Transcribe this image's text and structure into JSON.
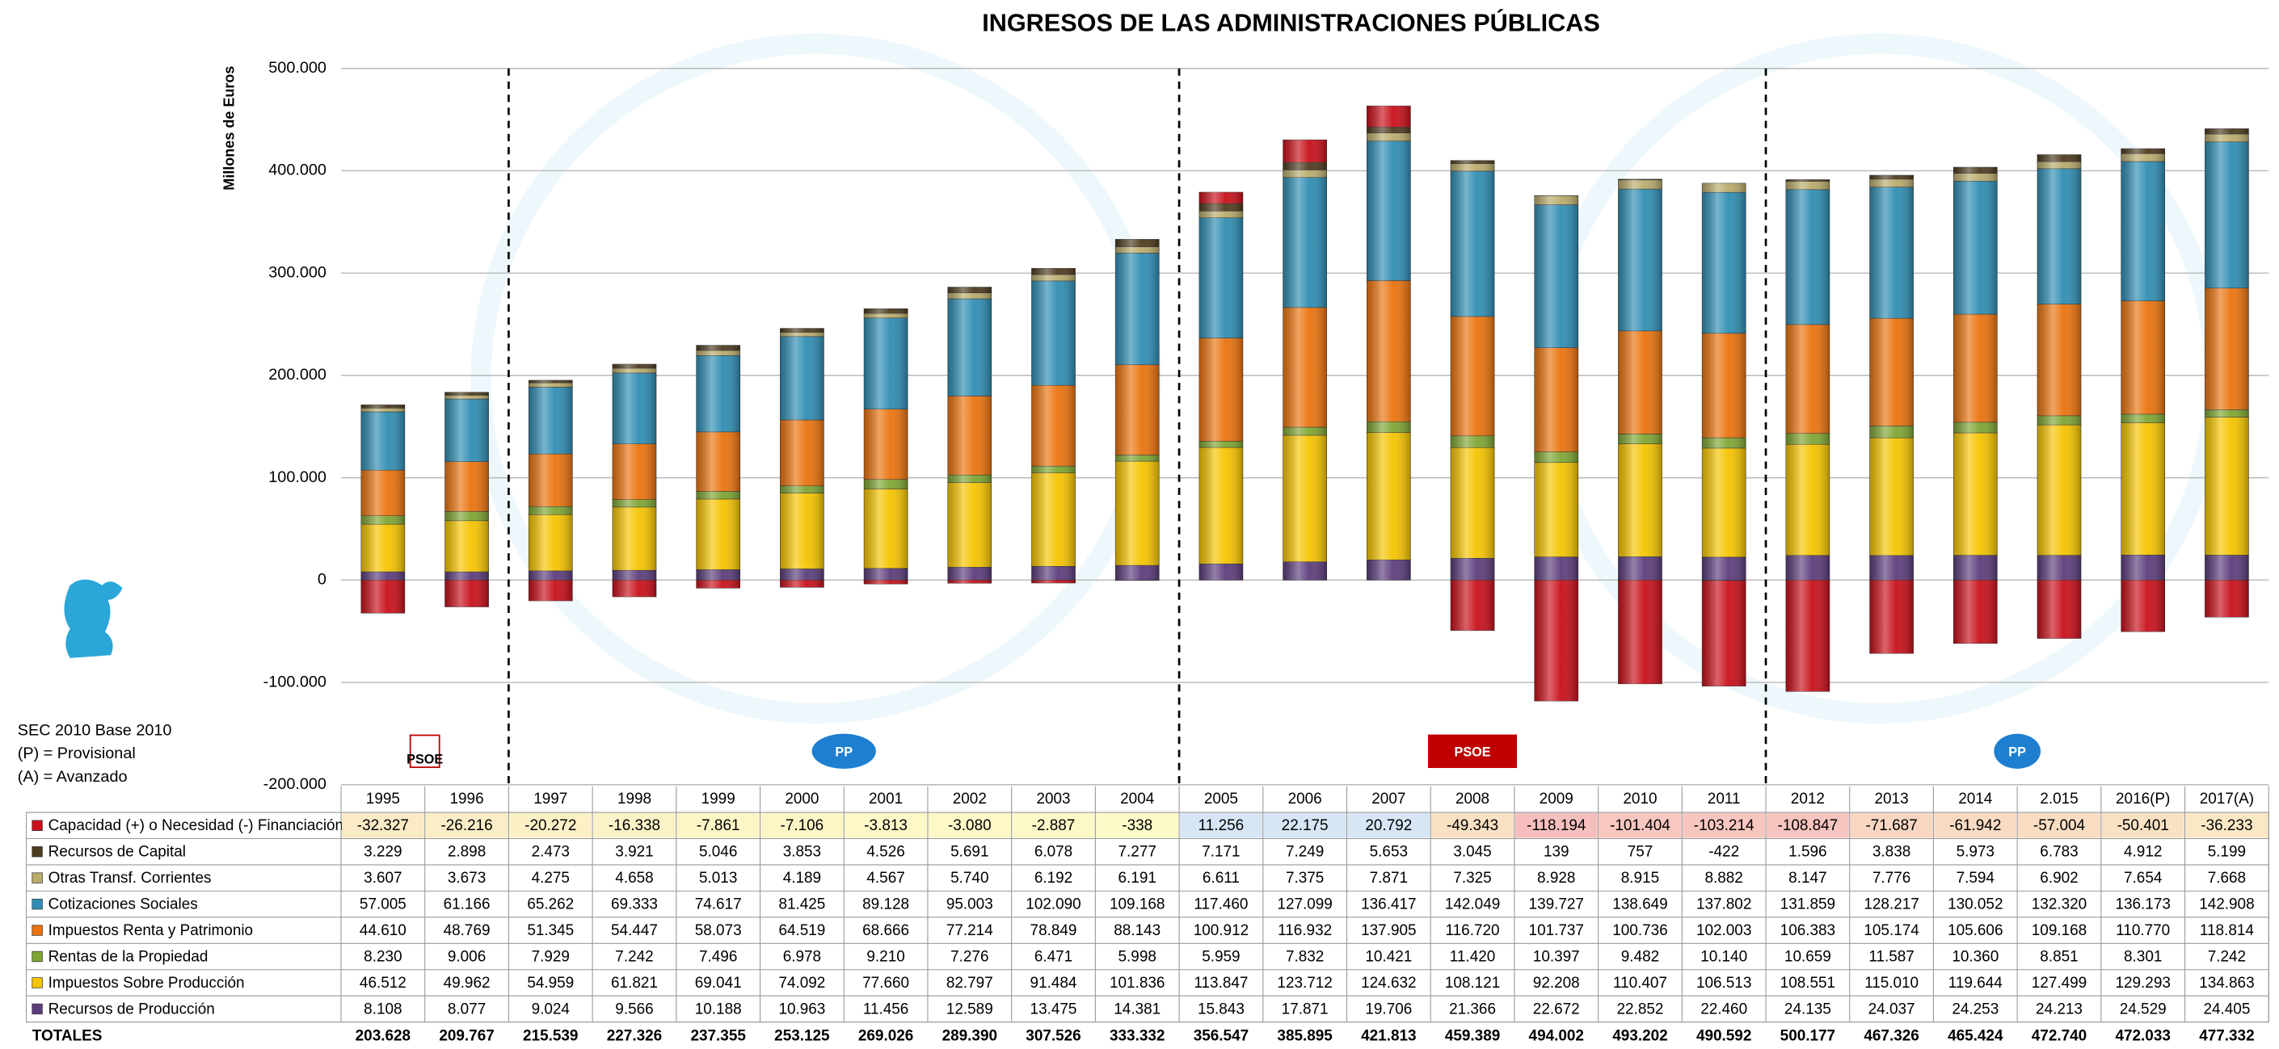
{
  "chart_data": {
    "type": "stacked_bar",
    "title": "INGRESOS DE LAS ADMINISTRACIONES PÚBLICAS",
    "y_label": "Millones de Euros",
    "notes": [
      "SEC 2010 Base 2010",
      "(P) = Provisional",
      "(A) = Avanzado"
    ],
    "periods": [
      {
        "label": "PSOE",
        "color": "#c00000"
      },
      {
        "label": "PP",
        "color": "#1e7fd0"
      },
      {
        "label": "PSOE",
        "color": "#c00000"
      },
      {
        "label": "PP",
        "color": "#1e7fd0"
      }
    ],
    "categories": [
      "1995",
      "1996",
      "1997",
      "1998",
      "1999",
      "2000",
      "2001",
      "2002",
      "2003",
      "2004",
      "2005",
      "2006",
      "2007",
      "2008",
      "2009",
      "2010",
      "2011",
      "2012",
      "2013",
      "2014",
      "2.015",
      "2016(P)",
      "2017(A)"
    ],
    "ylim": [
      -200000,
      500000
    ],
    "yticks": [
      {
        "value": -200000,
        "label": "-200.000"
      },
      {
        "value": -100000,
        "label": "-100.000"
      },
      0,
      {
        "value": 100000,
        "label": "100.000"
      },
      {
        "value": 200000,
        "label": "200.000"
      },
      {
        "value": 300000,
        "label": "300.000"
      },
      {
        "value": 400000,
        "label": "400.000"
      },
      {
        "value": 500000,
        "label": "500.000"
      }
    ],
    "grid": true,
    "series": [
      {
        "name": "Capacidad (+) o Necesidad (-) Financiación",
        "color": "#c8101a",
        "values": [
          -32327,
          -26216,
          -20272,
          -16338,
          -7861,
          -7106,
          -3813,
          -3080,
          -2887,
          -338,
          11256,
          22175,
          20792,
          -49343,
          -118194,
          -101404,
          -103214,
          -108847,
          -71687,
          -61942,
          -57004,
          -50401,
          -36233
        ],
        "value_labels": [
          "-32.327",
          "-26.216",
          "-20.272",
          "-16.338",
          "-7.861",
          "-7.106",
          "-3.813",
          "-3.080",
          "-2.887",
          "-338",
          "11.256",
          "22.175",
          "20.792",
          "-49.343",
          "-118.194",
          "-101.404",
          "-103.214",
          "-108.847",
          "-71.687",
          "-61.942",
          "-57.004",
          "-50.401",
          "-36.233"
        ]
      },
      {
        "name": "Recursos de Capital",
        "color": "#4d3b1f",
        "values": [
          3229,
          2898,
          2473,
          3921,
          5046,
          3853,
          4526,
          5691,
          6078,
          7277,
          7171,
          7249,
          5653,
          3045,
          139,
          757,
          -422,
          1596,
          3838,
          5973,
          6783,
          4912,
          5199
        ],
        "value_labels": [
          "3.229",
          "2.898",
          "2.473",
          "3.921",
          "5.046",
          "3.853",
          "4.526",
          "5.691",
          "6.078",
          "7.277",
          "7.171",
          "7.249",
          "5.653",
          "3.045",
          "139",
          "757",
          "-422",
          "1.596",
          "3.838",
          "5.973",
          "6.783",
          "4.912",
          "5.199"
        ]
      },
      {
        "name": "Otras Transf. Corrientes",
        "color": "#b9ab6c",
        "values": [
          3607,
          3673,
          4275,
          4658,
          5013,
          4189,
          4567,
          5740,
          6192,
          6191,
          6611,
          7375,
          7871,
          7325,
          8928,
          8915,
          8882,
          8147,
          7776,
          7594,
          6902,
          7654,
          7668
        ],
        "value_labels": [
          "3.607",
          "3.673",
          "4.275",
          "4.658",
          "5.013",
          "4.189",
          "4.567",
          "5.740",
          "6.192",
          "6.191",
          "6.611",
          "7.375",
          "7.871",
          "7.325",
          "8.928",
          "8.915",
          "8.882",
          "8.147",
          "7.776",
          "7.594",
          "6.902",
          "7.654",
          "7.668"
        ]
      },
      {
        "name": "Cotizaciones Sociales",
        "color": "#2f8db3",
        "values": [
          57005,
          61166,
          65262,
          69333,
          74617,
          81425,
          89128,
          95003,
          102090,
          109168,
          117460,
          127099,
          136417,
          142049,
          139727,
          138649,
          137802,
          131859,
          128217,
          130052,
          132320,
          136173,
          142908
        ],
        "value_labels": [
          "57.005",
          "61.166",
          "65.262",
          "69.333",
          "74.617",
          "81.425",
          "89.128",
          "95.003",
          "102.090",
          "109.168",
          "117.460",
          "127.099",
          "136.417",
          "142.049",
          "139.727",
          "138.649",
          "137.802",
          "131.859",
          "128.217",
          "130.052",
          "132.320",
          "136.173",
          "142.908"
        ]
      },
      {
        "name": "Impuestos Renta y Patrimonio",
        "color": "#ea730e",
        "values": [
          44610,
          48769,
          51345,
          54447,
          58073,
          64519,
          68666,
          77214,
          78849,
          88143,
          100912,
          116932,
          137905,
          116720,
          101737,
          100736,
          102003,
          106383,
          105174,
          105606,
          109168,
          110770,
          118814
        ],
        "value_labels": [
          "44.610",
          "48.769",
          "51.345",
          "54.447",
          "58.073",
          "64.519",
          "68.666",
          "77.214",
          "78.849",
          "88.143",
          "100.912",
          "116.932",
          "137.905",
          "116.720",
          "101.737",
          "100.736",
          "102.003",
          "106.383",
          "105.174",
          "105.606",
          "109.168",
          "110.770",
          "118.814"
        ]
      },
      {
        "name": "Rentas de la Propiedad",
        "color": "#7ea533",
        "values": [
          8230,
          9006,
          7929,
          7242,
          7496,
          6978,
          9210,
          7276,
          6471,
          5998,
          5959,
          7832,
          10421,
          11420,
          10397,
          9482,
          10140,
          10659,
          11587,
          10360,
          8851,
          8301,
          7242
        ],
        "value_labels": [
          "8.230",
          "9.006",
          "7.929",
          "7.242",
          "7.496",
          "6.978",
          "9.210",
          "7.276",
          "6.471",
          "5.998",
          "5.959",
          "7.832",
          "10.421",
          "11.420",
          "10.397",
          "9.482",
          "10.140",
          "10.659",
          "11.587",
          "10.360",
          "8.851",
          "8.301",
          "7.242"
        ]
      },
      {
        "name": "Impuestos Sobre Producción",
        "color": "#f5c400",
        "values": [
          46512,
          49962,
          54959,
          61821,
          69041,
          74092,
          77660,
          82797,
          91484,
          101836,
          113847,
          123712,
          124632,
          108121,
          92208,
          110407,
          106513,
          108551,
          115010,
          119644,
          127499,
          129293,
          134863
        ],
        "value_labels": [
          "46.512",
          "49.962",
          "54.959",
          "61.821",
          "69.041",
          "74.092",
          "77.660",
          "82.797",
          "91.484",
          "101.836",
          "113.847",
          "123.712",
          "124.632",
          "108.121",
          "92.208",
          "110.407",
          "106.513",
          "108.551",
          "115.010",
          "119.644",
          "127.499",
          "129.293",
          "134.863"
        ]
      },
      {
        "name": "Recursos de Producción",
        "color": "#5c3d7c",
        "values": [
          8108,
          8077,
          9024,
          9566,
          10188,
          10963,
          11456,
          12589,
          13475,
          14381,
          15843,
          17871,
          19706,
          21366,
          22672,
          22852,
          22460,
          24135,
          24037,
          24253,
          24213,
          24529,
          24405
        ],
        "value_labels": [
          "8.108",
          "8.077",
          "9.024",
          "9.566",
          "10.188",
          "10.963",
          "11.456",
          "12.589",
          "13.475",
          "14.381",
          "15.843",
          "17.871",
          "19.706",
          "21.366",
          "22.672",
          "22.852",
          "22.460",
          "24.135",
          "24.037",
          "24.253",
          "24.213",
          "24.529",
          "24.405"
        ]
      }
    ],
    "totals": {
      "label": "TOTALES",
      "values": [
        "203.628",
        "209.767",
        "215.539",
        "227.326",
        "237.355",
        "253.125",
        "269.026",
        "289.390",
        "307.526",
        "333.332",
        "356.547",
        "385.895",
        "421.813",
        "459.389",
        "494.002",
        "493.202",
        "490.592",
        "500.177",
        "467.326",
        "465.424",
        "472.740",
        "472.033",
        "477.332"
      ]
    }
  }
}
